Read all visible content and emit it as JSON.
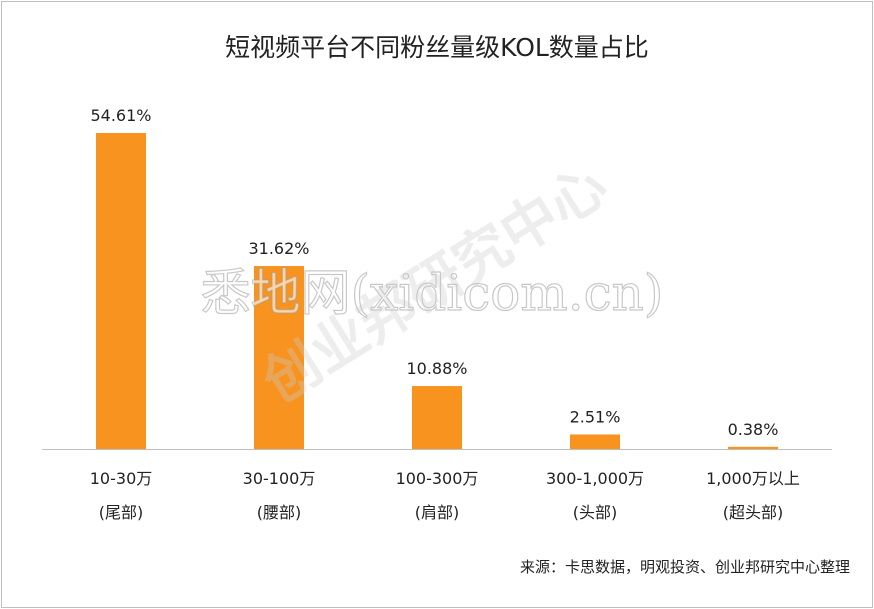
{
  "chart_data": {
    "type": "bar",
    "title": "短视频平台不同粉丝量级KOL数量占比",
    "categories": [
      [
        "10-30万",
        "(尾部)"
      ],
      [
        "30-100万",
        "(腰部)"
      ],
      [
        "100-300万",
        "(肩部)"
      ],
      [
        "300-1,000万",
        "(头部)"
      ],
      [
        "1,000万以上",
        "(超头部)"
      ]
    ],
    "values": [
      54.61,
      31.62,
      10.88,
      2.51,
      0.38
    ],
    "data_labels": [
      "54.61%",
      "31.62%",
      "10.88%",
      "2.51%",
      "0.38%"
    ],
    "unit": "%",
    "ylim": [
      0,
      55
    ],
    "grid": false,
    "legend": "none",
    "bar_color": "#F7931E"
  },
  "source_note": "来源：卡思数据，明观投资、创业邦研究中心整理",
  "watermarks": [
    "悉地网(xidicom.cn)",
    "创业邦研究中心"
  ]
}
